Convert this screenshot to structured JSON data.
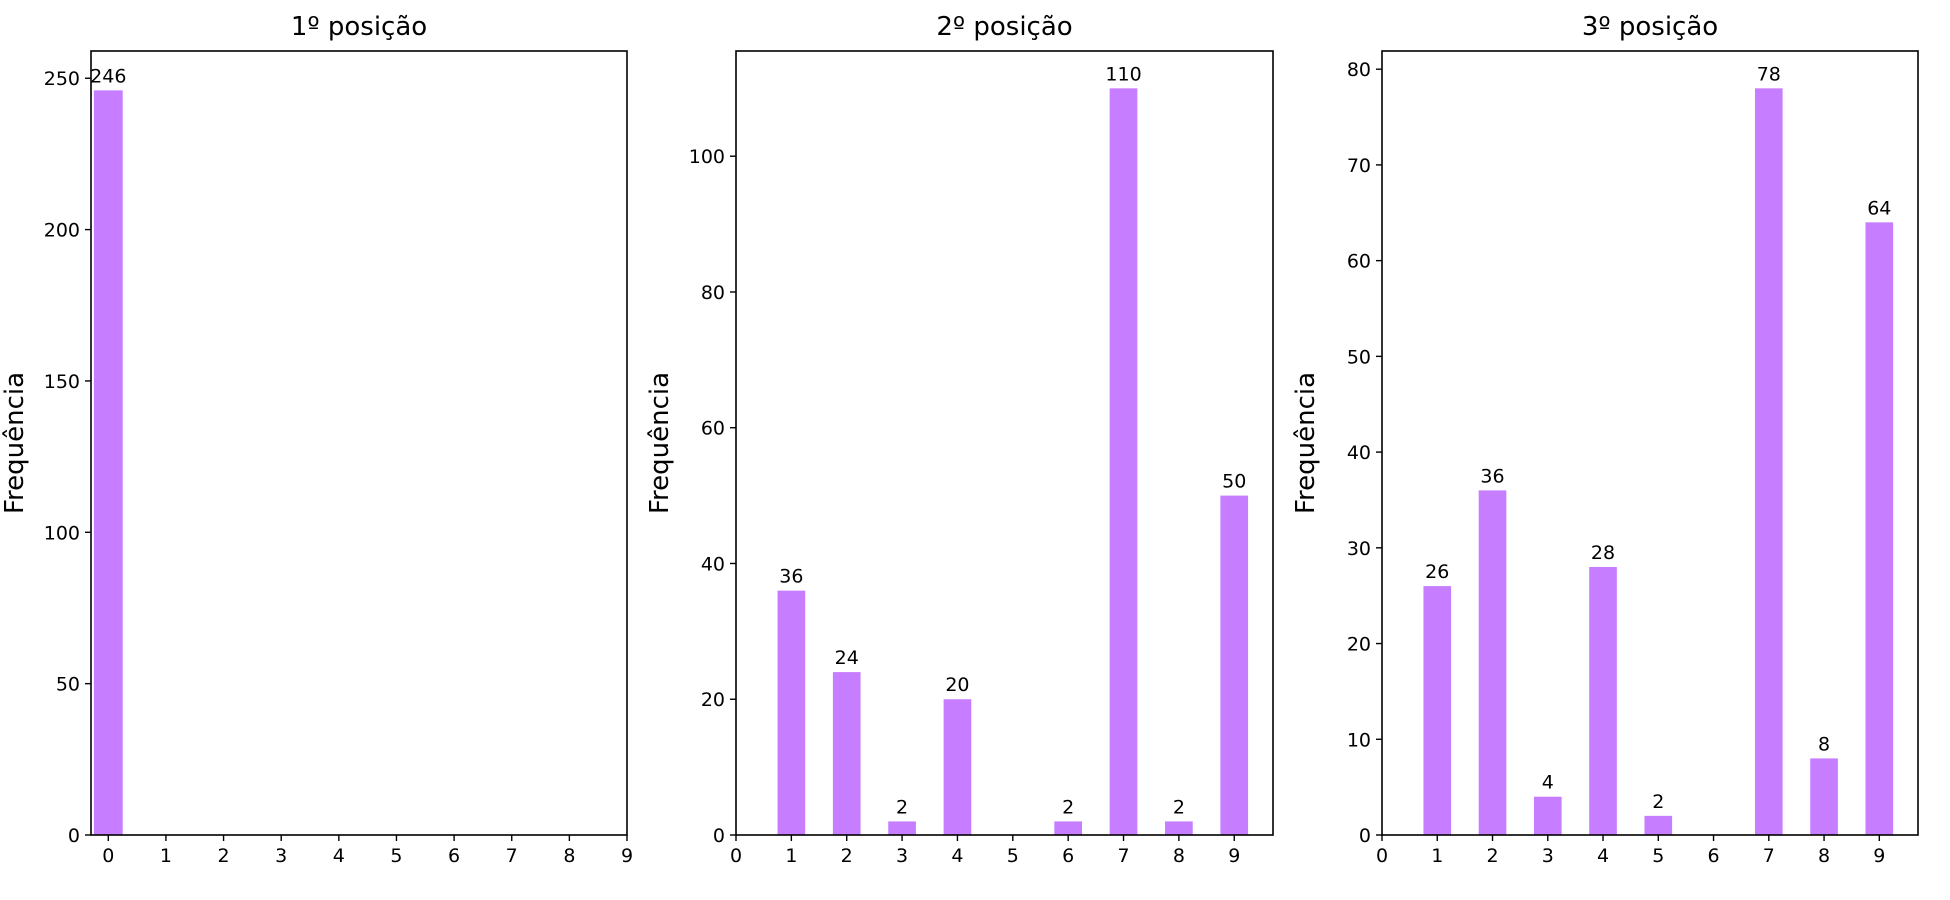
{
  "chart_data": [
    {
      "type": "bar",
      "title": "1º posição",
      "ylabel": "Frequência",
      "xlabel": "",
      "xticks": [
        0,
        1,
        2,
        3,
        4,
        5,
        6,
        7,
        8,
        9
      ],
      "xlim": [
        -0.3,
        9
      ],
      "ylim": [
        0,
        259
      ],
      "yticks": [
        0,
        50,
        100,
        150,
        200,
        250
      ],
      "bars": [
        {
          "x": 0,
          "value": 246
        }
      ],
      "color": "#c77dff",
      "grid": false
    },
    {
      "type": "bar",
      "title": "2º posição",
      "ylabel": "Frequência",
      "xlabel": "",
      "xticks": [
        0,
        1,
        2,
        3,
        4,
        5,
        6,
        7,
        8,
        9
      ],
      "xlim": [
        0,
        9.7
      ],
      "ylim": [
        0,
        115.5
      ],
      "yticks": [
        0,
        20,
        40,
        60,
        80,
        100
      ],
      "bars": [
        {
          "x": 1,
          "value": 36
        },
        {
          "x": 2,
          "value": 24
        },
        {
          "x": 3,
          "value": 2
        },
        {
          "x": 4,
          "value": 20
        },
        {
          "x": 6,
          "value": 2
        },
        {
          "x": 7,
          "value": 110
        },
        {
          "x": 8,
          "value": 2
        },
        {
          "x": 9,
          "value": 50
        }
      ],
      "color": "#c77dff",
      "grid": false
    },
    {
      "type": "bar",
      "title": "3º posição",
      "ylabel": "Frequência",
      "xlabel": "",
      "xticks": [
        0,
        1,
        2,
        3,
        4,
        5,
        6,
        7,
        8,
        9
      ],
      "xlim": [
        0,
        9.7
      ],
      "ylim": [
        0,
        81.9
      ],
      "yticks": [
        0,
        10,
        20,
        30,
        40,
        50,
        60,
        70,
        80
      ],
      "bars": [
        {
          "x": 1,
          "value": 26
        },
        {
          "x": 2,
          "value": 36
        },
        {
          "x": 3,
          "value": 4
        },
        {
          "x": 4,
          "value": 28
        },
        {
          "x": 5,
          "value": 2
        },
        {
          "x": 7,
          "value": 78
        },
        {
          "x": 8,
          "value": 8
        },
        {
          "x": 9,
          "value": 64
        }
      ],
      "color": "#c77dff",
      "grid": false
    }
  ]
}
